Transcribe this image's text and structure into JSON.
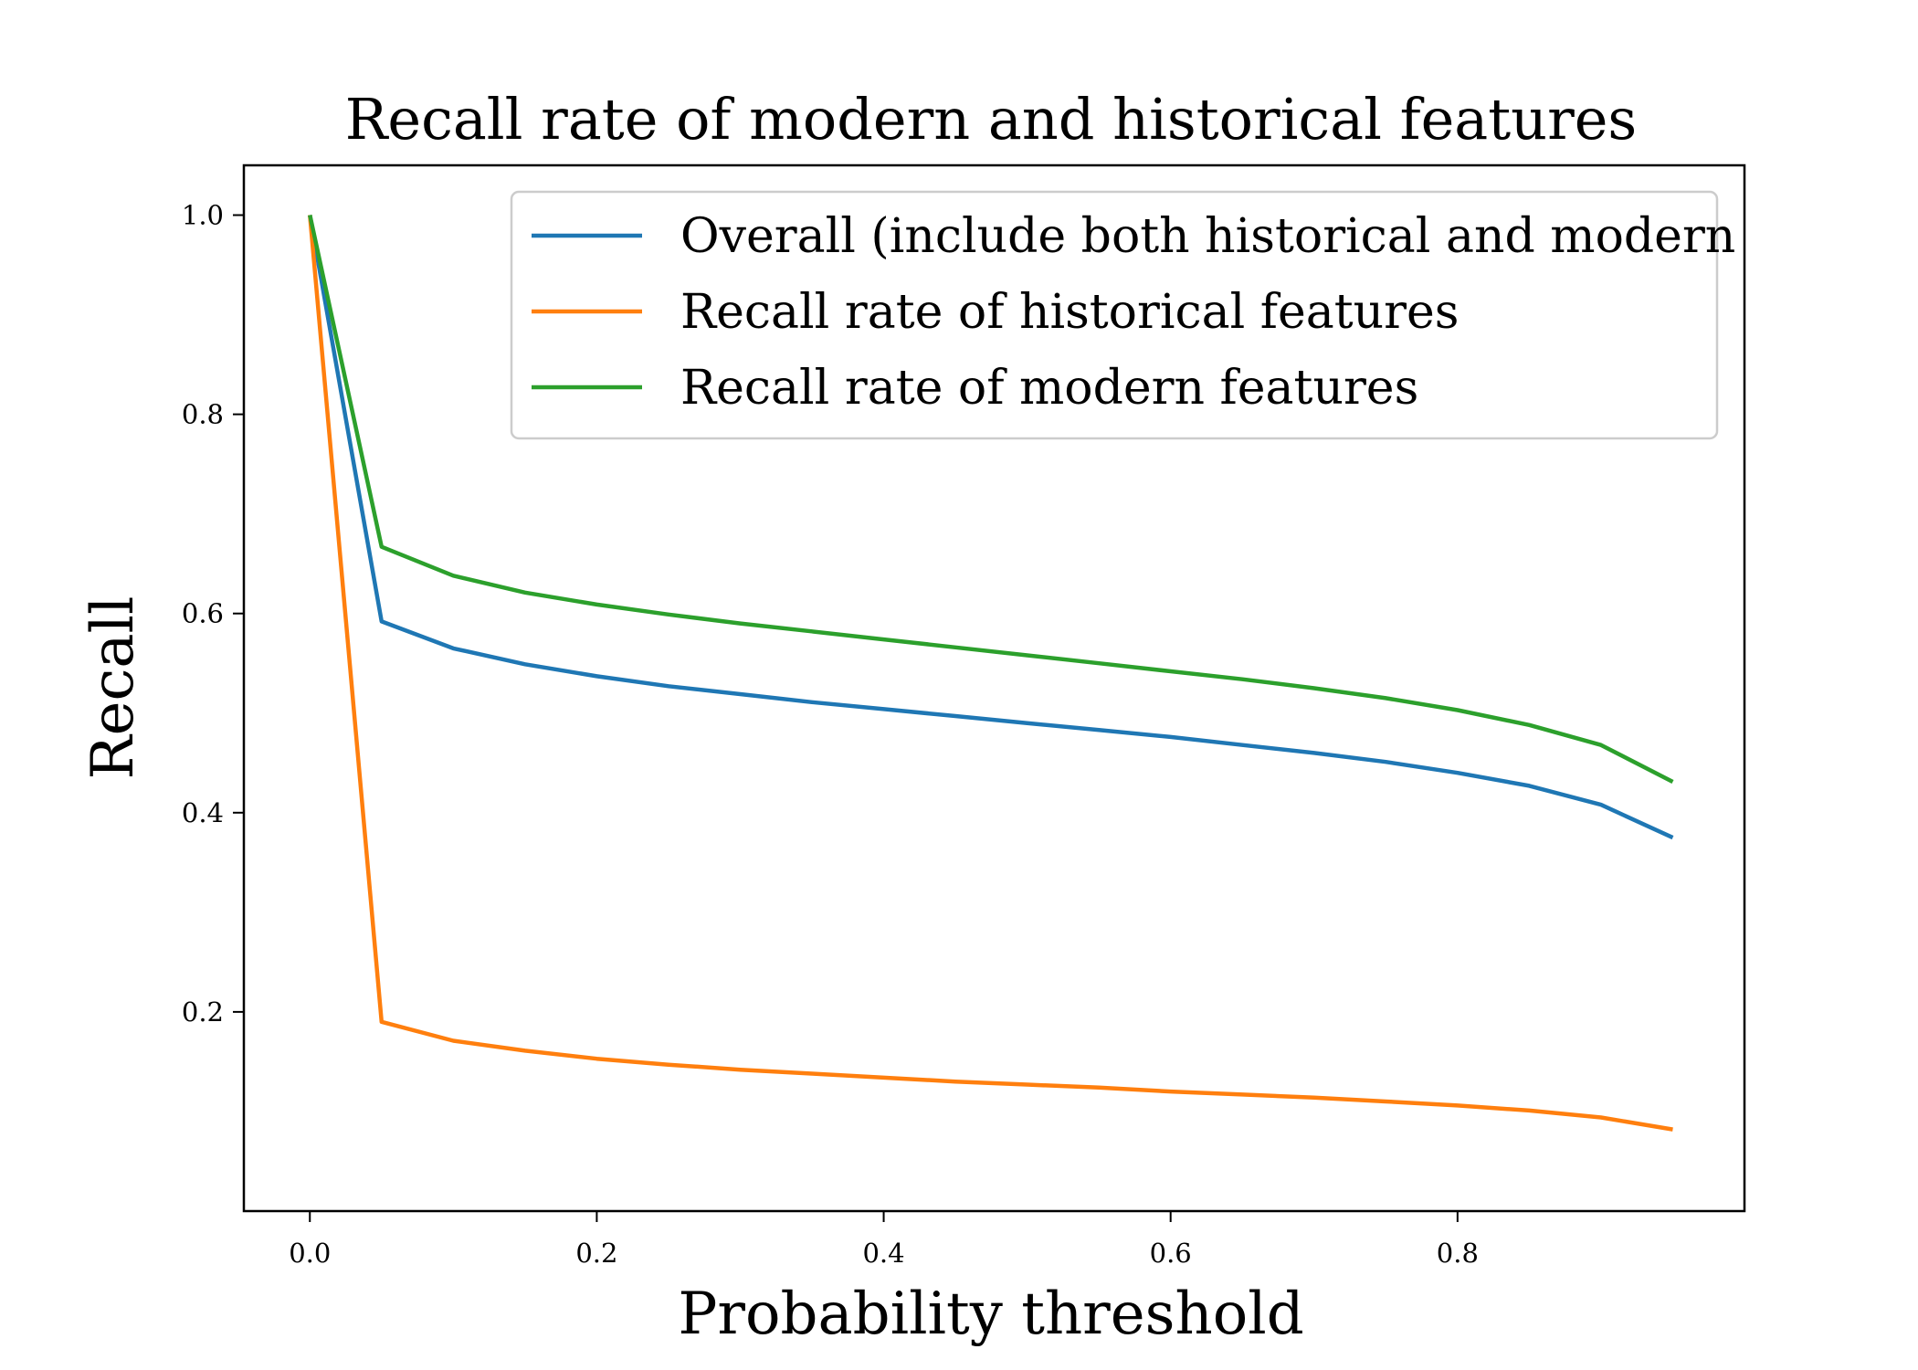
{
  "chart_data": {
    "type": "line",
    "title": "Recall rate of modern and historical features",
    "xlabel": "Probability threshold",
    "ylabel": "Recall",
    "xlim": [
      -0.046,
      1.0
    ],
    "ylim": [
      0.0,
      1.05
    ],
    "xticks": [
      "0.0",
      "0.2",
      "0.4",
      "0.6",
      "0.8"
    ],
    "yticks": [
      "0.2",
      "0.4",
      "0.6",
      "0.8",
      "1.0"
    ],
    "grid": false,
    "legend_position": "upper-right",
    "x": [
      0.0,
      0.05,
      0.1,
      0.15,
      0.2,
      0.25,
      0.3,
      0.35,
      0.4,
      0.45,
      0.5,
      0.55,
      0.6,
      0.65,
      0.7,
      0.75,
      0.8,
      0.85,
      0.9,
      0.95
    ],
    "series": [
      {
        "name": "Overall (include both historical and modern",
        "color": "#1f77b4",
        "values": [
          1.0,
          0.592,
          0.565,
          0.549,
          0.537,
          0.527,
          0.519,
          0.511,
          0.504,
          0.497,
          0.49,
          0.483,
          0.476,
          0.468,
          0.46,
          0.451,
          0.44,
          0.427,
          0.408,
          0.375
        ]
      },
      {
        "name": "Recall rate of historical features",
        "color": "#ff7f0e",
        "values": [
          1.0,
          0.19,
          0.171,
          0.161,
          0.153,
          0.147,
          0.142,
          0.138,
          0.134,
          0.13,
          0.127,
          0.124,
          0.12,
          0.117,
          0.114,
          0.11,
          0.106,
          0.101,
          0.094,
          0.082
        ]
      },
      {
        "name": "Recall rate of modern features",
        "color": "#2ca02c",
        "values": [
          1.0,
          0.667,
          0.638,
          0.621,
          0.609,
          0.599,
          0.59,
          0.582,
          0.574,
          0.566,
          0.558,
          0.55,
          0.542,
          0.534,
          0.525,
          0.515,
          0.503,
          0.488,
          0.468,
          0.431
        ]
      }
    ]
  }
}
